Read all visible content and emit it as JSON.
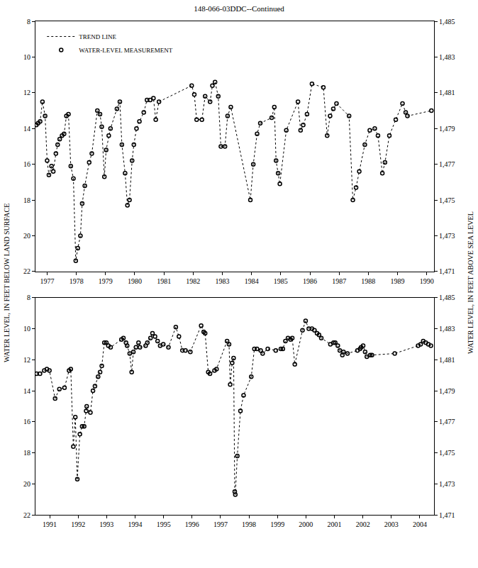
{
  "chart_data": [
    {
      "type": "line",
      "title": "148-066-03DDC--Continued",
      "ylabel": "WATER LEVEL, IN FEET BELOW LAND SURFACE",
      "y2label": "WATER LEVEL, IN FEET ABOVE SEA LEVEL",
      "legend": "upper left",
      "grid": false,
      "x": [
        1977.13,
        1977.19,
        1977.26,
        1977.34,
        1977.43,
        1977.5,
        1977.56,
        1977.65,
        1977.71,
        1977.8,
        1977.86,
        1977.93,
        1978.01,
        1978.08,
        1978.16,
        1978.23,
        1978.31,
        1978.4,
        1978.48,
        1978.55,
        1978.64,
        1978.7,
        1978.79,
        1978.94,
        1979.03,
        1979.22,
        1979.31,
        1979.37,
        1979.46,
        1979.52,
        1979.61,
        1979.67,
        1979.89,
        1979.99,
        1980.06,
        1980.17,
        1980.25,
        1980.32,
        1980.41,
        1980.47,
        1980.56,
        1980.66,
        1980.81,
        1980.92,
        1981.03,
        1981.14,
        1981.22,
        1981.33,
        1982.45,
        1982.54,
        1982.62,
        1982.8,
        1982.91,
        1983.08,
        1983.16,
        1983.25,
        1983.36,
        1983.45,
        1983.59,
        1983.68,
        1983.79,
        1984.46,
        1984.56,
        1984.69,
        1984.8,
        1985.19,
        1985.28,
        1985.34,
        1985.41,
        1985.47,
        1985.69,
        1986.09,
        1986.18,
        1986.27,
        1986.4,
        1986.57,
        1986.96,
        1987.09,
        1987.19,
        1987.3,
        1987.41,
        1987.84,
        1987.97,
        1988.08,
        1988.19,
        1988.38,
        1988.55,
        1988.72,
        1988.83,
        1988.98,
        1989.07,
        1989.22,
        1989.44,
        1989.67,
        1989.78,
        1989.84,
        1990.66
      ],
      "series": [
        {
          "name": "TREND LINE",
          "type": "line",
          "line_style": "dotted",
          "color": "#000000",
          "values": [
            13.8,
            13.7,
            13.6,
            12.5,
            13.3,
            15.8,
            16.6,
            16.1,
            16.4,
            15.4,
            14.9,
            14.6,
            14.4,
            14.3,
            13.3,
            13.2,
            16.1,
            16.8,
            21.4,
            20.7,
            20.0,
            18.2,
            17.2,
            15.9,
            15.4,
            13.0,
            13.2,
            13.9,
            16.7,
            15.2,
            14.4,
            14.0,
            12.9,
            12.5,
            14.9,
            16.5,
            18.3,
            18.0,
            15.8,
            14.9,
            14.0,
            13.6,
            13.1,
            12.4,
            12.4,
            12.3,
            13.5,
            12.5,
            11.6,
            12.1,
            13.5,
            13.5,
            12.2,
            12.5,
            11.6,
            11.4,
            12.2,
            15.0,
            15.0,
            13.3,
            12.8,
            18.0,
            16.0,
            14.3,
            13.7,
            13.4,
            12.8,
            15.8,
            16.5,
            17.1,
            14.1,
            12.5,
            14.1,
            13.8,
            13.2,
            11.5,
            11.7,
            14.4,
            13.3,
            12.9,
            12.6,
            13.3,
            18.0,
            17.3,
            16.4,
            14.9,
            14.1,
            14.0,
            14.4,
            16.5,
            15.9,
            14.4,
            13.5,
            12.6,
            13.1,
            13.3,
            13.0
          ]
        },
        {
          "name": "WATER-LEVEL MEASUREMENT",
          "type": "scatter",
          "marker": "circle-open",
          "color": "#000000",
          "values": [
            13.8,
            13.7,
            13.6,
            12.5,
            13.3,
            15.8,
            16.6,
            16.1,
            16.4,
            15.4,
            14.9,
            14.6,
            14.4,
            14.3,
            13.3,
            13.2,
            16.1,
            16.8,
            21.4,
            20.7,
            20.0,
            18.2,
            17.2,
            15.9,
            15.4,
            13.0,
            13.2,
            13.9,
            16.7,
            15.2,
            14.4,
            14.0,
            12.9,
            12.5,
            14.9,
            16.5,
            18.3,
            18.0,
            15.8,
            14.9,
            14.0,
            13.6,
            13.1,
            12.4,
            12.4,
            12.3,
            13.5,
            12.5,
            11.6,
            12.1,
            13.5,
            13.5,
            12.2,
            12.5,
            11.6,
            11.4,
            12.2,
            15.0,
            15.0,
            13.3,
            12.8,
            18.0,
            16.0,
            14.3,
            13.7,
            13.4,
            12.8,
            15.8,
            16.5,
            17.1,
            14.1,
            12.5,
            14.1,
            13.8,
            13.2,
            11.5,
            11.7,
            14.4,
            13.3,
            12.9,
            12.6,
            13.3,
            18.0,
            17.3,
            16.4,
            14.9,
            14.1,
            14.0,
            14.4,
            16.5,
            15.9,
            14.4,
            13.5,
            12.6,
            13.1,
            13.3,
            13.0
          ]
        }
      ],
      "xlim": [
        1977.1,
        1990.75
      ],
      "xticks": [
        {
          "value": 1977.5,
          "label": "1977"
        },
        {
          "value": 1978.5,
          "label": "1978"
        },
        {
          "value": 1979.5,
          "label": "1979"
        },
        {
          "value": 1980.5,
          "label": "1980"
        },
        {
          "value": 1981.5,
          "label": "1981"
        },
        {
          "value": 1982.5,
          "label": "1982"
        },
        {
          "value": 1983.5,
          "label": "1983"
        },
        {
          "value": 1984.5,
          "label": "1984"
        },
        {
          "value": 1985.5,
          "label": "1985"
        },
        {
          "value": 1986.5,
          "label": "1986"
        },
        {
          "value": 1987.5,
          "label": "1987"
        },
        {
          "value": 1988.5,
          "label": "1988"
        },
        {
          "value": 1989.5,
          "label": "1989"
        },
        {
          "value": 1990.5,
          "label": "1990"
        }
      ],
      "ylim": [
        22,
        8
      ],
      "yticks": [
        8,
        10,
        12,
        14,
        16,
        18,
        20,
        22
      ],
      "y2lim": [
        1471,
        1485
      ],
      "y2ticks": [
        {
          "value": 1471,
          "label": "1,471"
        },
        {
          "value": 1473,
          "label": "1,473"
        },
        {
          "value": 1475,
          "label": "1,475"
        },
        {
          "value": 1477,
          "label": "1,477"
        },
        {
          "value": 1479,
          "label": "1,479"
        },
        {
          "value": 1481,
          "label": "1,481"
        },
        {
          "value": 1483,
          "label": "1,483"
        },
        {
          "value": 1485,
          "label": "1,485"
        }
      ]
    },
    {
      "type": "line",
      "grid": false,
      "x": [
        1991.04,
        1991.16,
        1991.31,
        1991.4,
        1991.49,
        1991.69,
        1991.84,
        1992.02,
        1992.18,
        1992.24,
        1992.33,
        1992.4,
        1992.47,
        1992.56,
        1992.64,
        1992.71,
        1992.78,
        1992.8,
        1992.93,
        1993.02,
        1993.09,
        1993.2,
        1993.27,
        1993.33,
        1993.42,
        1993.49,
        1993.56,
        1993.64,
        1994.02,
        1994.09,
        1994.18,
        1994.22,
        1994.31,
        1994.38,
        1994.44,
        1994.53,
        1994.62,
        1994.67,
        1994.87,
        1994.93,
        1995.04,
        1995.11,
        1995.2,
        1995.29,
        1995.38,
        1995.49,
        1995.67,
        1995.93,
        1996.04,
        1996.16,
        1996.27,
        1996.44,
        1996.82,
        1996.91,
        1996.96,
        1997.07,
        1997.13,
        1997.29,
        1997.36,
        1997.73,
        1997.8,
        1997.84,
        1997.91,
        1997.96,
        1998.0,
        1998.02,
        1998.09,
        1998.2,
        1998.31,
        1998.58,
        1998.69,
        1998.78,
        1998.91,
        1998.98,
        1999.16,
        1999.44,
        1999.62,
        1999.69,
        1999.78,
        1999.87,
        1999.96,
        2000.02,
        2000.11,
        2000.38,
        2000.49,
        2000.6,
        2000.71,
        2000.8,
        2000.89,
        2000.96,
        2001.04,
        2001.36,
        2001.47,
        2001.53,
        2001.62,
        2001.69,
        2001.78,
        2001.82,
        2001.96,
        2002.31,
        2002.4,
        2002.44,
        2002.51,
        2002.58,
        2002.64,
        2002.76,
        2002.82,
        2003.62,
        2004.44,
        2004.53,
        2004.62,
        2004.71,
        2004.8,
        2004.89
      ],
      "series": [
        {
          "type": "line",
          "line_style": "dotted",
          "color": "#000000",
          "values": [
            12.9,
            12.9,
            12.7,
            12.6,
            12.7,
            14.5,
            13.9,
            13.8,
            12.7,
            12.6,
            17.6,
            15.7,
            19.7,
            16.8,
            16.3,
            16.3,
            15.3,
            15.0,
            15.4,
            14.0,
            13.7,
            13.1,
            12.8,
            12.4,
            10.9,
            10.9,
            11.1,
            11.2,
            10.7,
            10.6,
            10.9,
            11.1,
            11.6,
            12.8,
            11.5,
            11.2,
            10.9,
            11.2,
            11.1,
            10.9,
            10.6,
            10.3,
            10.5,
            10.8,
            11.1,
            11.0,
            11.2,
            9.9,
            10.5,
            11.4,
            11.4,
            11.5,
            9.8,
            10.2,
            10.3,
            12.8,
            12.9,
            12.7,
            12.6,
            10.8,
            11.0,
            13.6,
            12.2,
            11.9,
            20.5,
            20.7,
            18.2,
            15.3,
            14.3,
            13.1,
            11.3,
            11.3,
            11.4,
            11.6,
            11.3,
            11.4,
            11.3,
            11.3,
            10.8,
            10.6,
            10.7,
            10.6,
            12.3,
            10.1,
            9.5,
            10.0,
            10.0,
            10.1,
            10.3,
            10.4,
            10.6,
            11.0,
            10.9,
            10.9,
            11.1,
            11.4,
            11.7,
            11.5,
            11.6,
            11.4,
            11.3,
            11.2,
            11.1,
            11.5,
            11.8,
            11.7,
            11.7,
            11.6,
            11.1,
            11.0,
            10.8,
            10.9,
            11.0,
            11.1
          ]
        },
        {
          "type": "scatter",
          "marker": "circle-open",
          "color": "#000000",
          "values": [
            12.9,
            12.9,
            12.7,
            12.6,
            12.7,
            14.5,
            13.9,
            13.8,
            12.7,
            12.6,
            17.6,
            15.7,
            19.7,
            16.8,
            16.3,
            16.3,
            15.3,
            15.0,
            15.4,
            14.0,
            13.7,
            13.1,
            12.8,
            12.4,
            10.9,
            10.9,
            11.1,
            11.2,
            10.7,
            10.6,
            10.9,
            11.1,
            11.6,
            12.8,
            11.5,
            11.2,
            10.9,
            11.2,
            11.1,
            10.9,
            10.6,
            10.3,
            10.5,
            10.8,
            11.1,
            11.0,
            11.2,
            9.9,
            10.5,
            11.4,
            11.4,
            11.5,
            9.8,
            10.2,
            10.3,
            12.8,
            12.9,
            12.7,
            12.6,
            10.8,
            11.0,
            13.6,
            12.2,
            11.9,
            20.5,
            20.7,
            18.2,
            15.3,
            14.3,
            13.1,
            11.3,
            11.3,
            11.4,
            11.6,
            11.3,
            11.4,
            11.3,
            11.3,
            10.8,
            10.6,
            10.7,
            10.6,
            12.3,
            10.1,
            9.5,
            10.0,
            10.0,
            10.1,
            10.3,
            10.4,
            10.6,
            11.0,
            10.9,
            10.9,
            11.1,
            11.4,
            11.7,
            11.5,
            11.6,
            11.4,
            11.3,
            11.2,
            11.1,
            11.5,
            11.8,
            11.7,
            11.7,
            11.6,
            11.1,
            11.0,
            10.8,
            10.9,
            11.0,
            11.1
          ]
        }
      ],
      "xlim": [
        1991.0,
        2005.0
      ],
      "xticks": [
        {
          "value": 1991.5,
          "label": "1991"
        },
        {
          "value": 1992.5,
          "label": "1992"
        },
        {
          "value": 1993.5,
          "label": "1993"
        },
        {
          "value": 1994.5,
          "label": "1994"
        },
        {
          "value": 1995.5,
          "label": "1995"
        },
        {
          "value": 1996.5,
          "label": "1996"
        },
        {
          "value": 1997.5,
          "label": "1997"
        },
        {
          "value": 1998.5,
          "label": "1998"
        },
        {
          "value": 1999.5,
          "label": "1999"
        },
        {
          "value": 2000.5,
          "label": "2000"
        },
        {
          "value": 2001.5,
          "label": "2001"
        },
        {
          "value": 2002.5,
          "label": "2002"
        },
        {
          "value": 2003.5,
          "label": "2003"
        },
        {
          "value": 2004.5,
          "label": "2004"
        }
      ],
      "ylim": [
        22,
        8
      ],
      "yticks": [
        8,
        10,
        12,
        14,
        16,
        18,
        20,
        22
      ],
      "y2lim": [
        1471,
        1485
      ],
      "y2ticks": [
        {
          "value": 1471,
          "label": "1,471"
        },
        {
          "value": 1473,
          "label": "1,473"
        },
        {
          "value": 1475,
          "label": "1,475"
        },
        {
          "value": 1477,
          "label": "1,477"
        },
        {
          "value": 1479,
          "label": "1,479"
        },
        {
          "value": 1481,
          "label": "1,481"
        },
        {
          "value": 1483,
          "label": "1,483"
        },
        {
          "value": 1485,
          "label": "1,485"
        }
      ]
    }
  ]
}
